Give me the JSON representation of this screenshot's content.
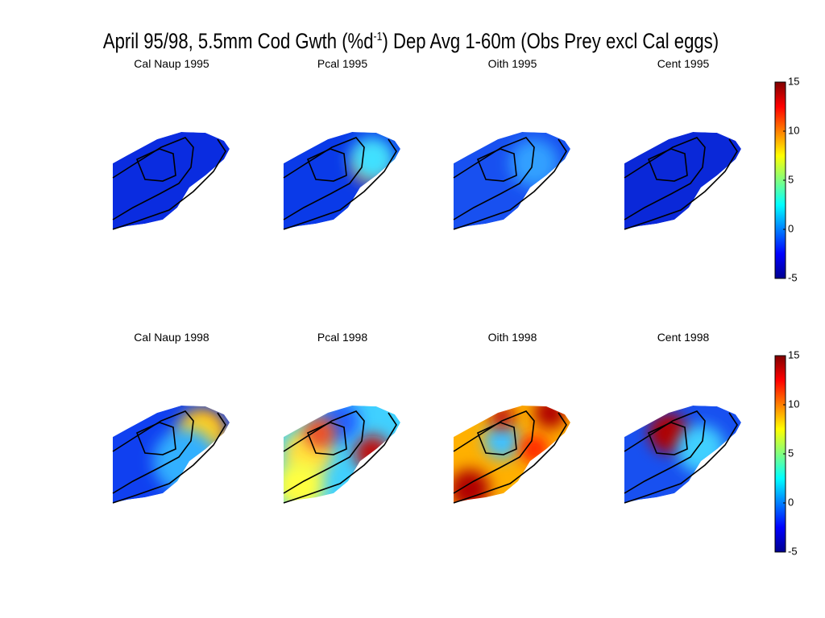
{
  "title_before": "April 95/98, 5.5mm Cod Gwth (%d",
  "title_sup": "-1",
  "title_after": ") Dep Avg 1-60m (Obs Prey excl Cal eggs)",
  "panels": [
    [
      "Cal Naup 1995",
      "Pcal 1995",
      "Oith 1995",
      "Cent 1995"
    ],
    [
      "Cal Naup 1998",
      "Pcal 1998",
      "Oith 1998",
      "Cent 1998"
    ]
  ],
  "colorbars": [
    {
      "clim": [
        -5,
        15
      ],
      "ticks": [
        -5,
        0,
        5,
        10,
        15
      ]
    },
    {
      "clim": [
        -5,
        15
      ],
      "ticks": [
        -5,
        0,
        5,
        10,
        15
      ]
    }
  ]
}
